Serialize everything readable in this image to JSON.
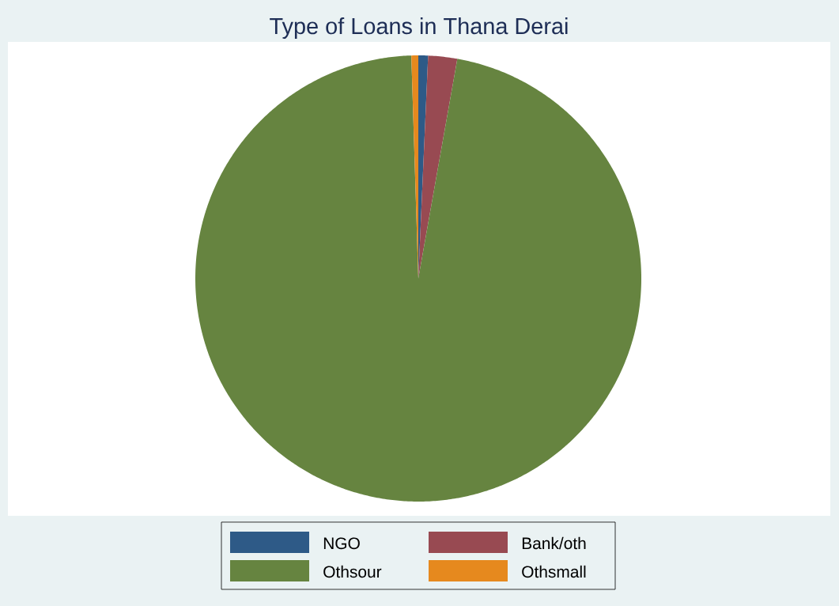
{
  "chart_data": {
    "type": "pie",
    "title": "Type of Loans in Thana Derai",
    "categories": [
      "NGO",
      "Bank/oth",
      "Othsour",
      "Othsmall"
    ],
    "values": [
      0.7,
      2.1,
      96.7,
      0.5
    ],
    "colors": [
      "#2e5a87",
      "#984a52",
      "#668440",
      "#e6891e"
    ],
    "legend": "bottom"
  }
}
